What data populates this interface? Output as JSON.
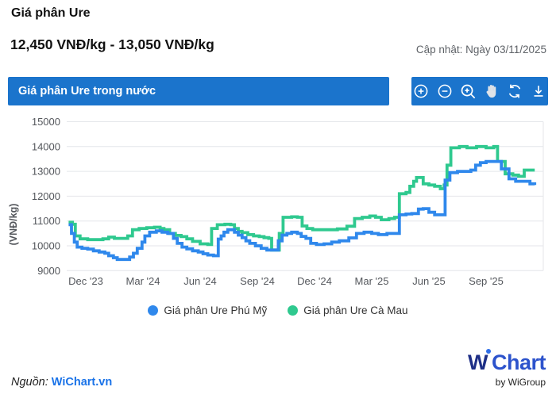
{
  "page": {
    "title": "Giá phân Ure",
    "price_range": "12,450 VNĐ/kg - 13,050 VNĐ/kg",
    "updated": "Cập nhật: Ngày 03/11/2025"
  },
  "chart_header": {
    "title": "Giá phân Ure trong nước",
    "toolbar_icons": [
      "zoom-in",
      "zoom-out",
      "zoom-search",
      "pan-hand",
      "refresh",
      "download"
    ]
  },
  "legend": {
    "items": [
      {
        "label": "Giá phân Ure Phú Mỹ",
        "color": "#2f88ec"
      },
      {
        "label": "Giá phân Ure Cà Mau",
        "color": "#2fc98f"
      }
    ]
  },
  "footer": {
    "source_label": "Nguồn:",
    "source_link": "WiChart.vn",
    "logo_w": "W",
    "logo_chart": "Chart",
    "logo_sub": "by WiGroup"
  },
  "chart_data": {
    "type": "line",
    "step": true,
    "title": "Giá phân Ure trong nước",
    "ylabel": "(VNĐ/kg)",
    "ylim": [
      9000,
      15000
    ],
    "yticks": [
      9000,
      10000,
      11000,
      12000,
      13000,
      14000,
      15000
    ],
    "x_unit": "months since Nov 2023",
    "xlim": [
      0,
      24.7
    ],
    "xticks": [
      {
        "t": 1,
        "label": "Dec '23"
      },
      {
        "t": 4,
        "label": "Mar '24"
      },
      {
        "t": 7,
        "label": "Jun '24"
      },
      {
        "t": 10,
        "label": "Sep '24"
      },
      {
        "t": 13,
        "label": "Dec '24"
      },
      {
        "t": 16,
        "label": "Mar '25"
      },
      {
        "t": 19,
        "label": "Jun '25"
      },
      {
        "t": 22,
        "label": "Sep '25"
      }
    ],
    "grid": "horizontal",
    "legend_position": "bottom",
    "series": [
      {
        "name": "Giá phân Ure Cà Mau",
        "color": "#2fc98f",
        "points": [
          [
            0.1,
            10950
          ],
          [
            0.3,
            10870
          ],
          [
            0.45,
            10400
          ],
          [
            0.7,
            10280
          ],
          [
            1.1,
            10250
          ],
          [
            1.5,
            10250
          ],
          [
            1.9,
            10280
          ],
          [
            2.2,
            10350
          ],
          [
            2.5,
            10300
          ],
          [
            2.9,
            10300
          ],
          [
            3.2,
            10400
          ],
          [
            3.45,
            10650
          ],
          [
            3.8,
            10700
          ],
          [
            4.2,
            10730
          ],
          [
            4.6,
            10750
          ],
          [
            4.9,
            10700
          ],
          [
            5.1,
            10650
          ],
          [
            5.4,
            10500
          ],
          [
            5.7,
            10420
          ],
          [
            6.0,
            10370
          ],
          [
            6.3,
            10280
          ],
          [
            6.6,
            10180
          ],
          [
            7.0,
            10080
          ],
          [
            7.4,
            10050
          ],
          [
            7.6,
            10700
          ],
          [
            7.9,
            10850
          ],
          [
            8.3,
            10870
          ],
          [
            8.6,
            10850
          ],
          [
            8.8,
            10700
          ],
          [
            9.0,
            10580
          ],
          [
            9.2,
            10530
          ],
          [
            9.5,
            10450
          ],
          [
            9.8,
            10400
          ],
          [
            10.1,
            10370
          ],
          [
            10.35,
            10330
          ],
          [
            10.6,
            10300
          ],
          [
            10.75,
            9830
          ],
          [
            11.0,
            9830
          ],
          [
            11.15,
            10500
          ],
          [
            11.35,
            11150
          ],
          [
            11.8,
            11170
          ],
          [
            12.1,
            11150
          ],
          [
            12.35,
            10800
          ],
          [
            12.6,
            10700
          ],
          [
            12.9,
            10650
          ],
          [
            13.4,
            10650
          ],
          [
            13.9,
            10650
          ],
          [
            14.2,
            10680
          ],
          [
            14.7,
            10790
          ],
          [
            15.1,
            11100
          ],
          [
            15.5,
            11150
          ],
          [
            15.9,
            11200
          ],
          [
            16.2,
            11150
          ],
          [
            16.5,
            11050
          ],
          [
            16.9,
            11100
          ],
          [
            17.2,
            11150
          ],
          [
            17.45,
            12100
          ],
          [
            17.8,
            12150
          ],
          [
            18.0,
            12400
          ],
          [
            18.2,
            12600
          ],
          [
            18.35,
            12750
          ],
          [
            18.7,
            12500
          ],
          [
            19.0,
            12450
          ],
          [
            19.3,
            12400
          ],
          [
            19.6,
            12300
          ],
          [
            19.8,
            12450
          ],
          [
            19.95,
            13250
          ],
          [
            20.15,
            13950
          ],
          [
            20.6,
            14000
          ],
          [
            21.0,
            13950
          ],
          [
            21.5,
            14000
          ],
          [
            22.0,
            13950
          ],
          [
            22.4,
            14000
          ],
          [
            22.6,
            13400
          ],
          [
            23.0,
            12900
          ],
          [
            23.4,
            12850
          ],
          [
            23.7,
            12800
          ],
          [
            24.0,
            13050
          ],
          [
            24.55,
            13050
          ]
        ]
      },
      {
        "name": "Giá phân Ure Phú Mỹ",
        "color": "#2f88ec",
        "points": [
          [
            0.1,
            10850
          ],
          [
            0.25,
            10500
          ],
          [
            0.4,
            10150
          ],
          [
            0.55,
            9950
          ],
          [
            0.8,
            9900
          ],
          [
            1.1,
            9870
          ],
          [
            1.4,
            9800
          ],
          [
            1.7,
            9750
          ],
          [
            2.0,
            9700
          ],
          [
            2.2,
            9600
          ],
          [
            2.45,
            9520
          ],
          [
            2.65,
            9450
          ],
          [
            3.1,
            9450
          ],
          [
            3.3,
            9550
          ],
          [
            3.5,
            9700
          ],
          [
            3.7,
            9900
          ],
          [
            3.95,
            10150
          ],
          [
            4.1,
            10400
          ],
          [
            4.35,
            10550
          ],
          [
            4.7,
            10600
          ],
          [
            5.0,
            10550
          ],
          [
            5.3,
            10500
          ],
          [
            5.6,
            10300
          ],
          [
            5.8,
            10100
          ],
          [
            6.05,
            9950
          ],
          [
            6.3,
            9880
          ],
          [
            6.6,
            9800
          ],
          [
            6.9,
            9750
          ],
          [
            7.15,
            9680
          ],
          [
            7.4,
            9630
          ],
          [
            7.7,
            9600
          ],
          [
            7.95,
            10270
          ],
          [
            8.1,
            10400
          ],
          [
            8.25,
            10550
          ],
          [
            8.45,
            10650
          ],
          [
            8.8,
            10550
          ],
          [
            9.0,
            10430
          ],
          [
            9.2,
            10330
          ],
          [
            9.4,
            10200
          ],
          [
            9.6,
            10100
          ],
          [
            9.9,
            10000
          ],
          [
            10.2,
            9900
          ],
          [
            10.5,
            9830
          ],
          [
            10.9,
            9830
          ],
          [
            11.1,
            10200
          ],
          [
            11.3,
            10430
          ],
          [
            11.55,
            10500
          ],
          [
            11.8,
            10550
          ],
          [
            12.1,
            10500
          ],
          [
            12.3,
            10380
          ],
          [
            12.55,
            10300
          ],
          [
            12.8,
            10100
          ],
          [
            13.1,
            10050
          ],
          [
            13.5,
            10080
          ],
          [
            13.9,
            10150
          ],
          [
            14.3,
            10200
          ],
          [
            14.8,
            10320
          ],
          [
            15.2,
            10500
          ],
          [
            15.6,
            10550
          ],
          [
            16.0,
            10500
          ],
          [
            16.35,
            10450
          ],
          [
            16.8,
            10500
          ],
          [
            17.2,
            10500
          ],
          [
            17.45,
            11250
          ],
          [
            17.8,
            11280
          ],
          [
            18.1,
            11300
          ],
          [
            18.45,
            11480
          ],
          [
            18.7,
            11500
          ],
          [
            19.0,
            11350
          ],
          [
            19.3,
            11250
          ],
          [
            19.7,
            11250
          ],
          [
            19.85,
            12650
          ],
          [
            20.1,
            12950
          ],
          [
            20.5,
            13000
          ],
          [
            21.0,
            13000
          ],
          [
            21.2,
            13050
          ],
          [
            21.45,
            13250
          ],
          [
            21.7,
            13350
          ],
          [
            22.0,
            13400
          ],
          [
            22.5,
            13400
          ],
          [
            22.8,
            13100
          ],
          [
            23.2,
            12700
          ],
          [
            23.55,
            12600
          ],
          [
            24.0,
            12600
          ],
          [
            24.3,
            12500
          ],
          [
            24.55,
            12450
          ]
        ]
      }
    ],
    "colors": {
      "header_bar": "#1b74cc",
      "gridline": "#e4e6ea",
      "axis_text": "#54575c",
      "link": "#1a73e8"
    }
  }
}
